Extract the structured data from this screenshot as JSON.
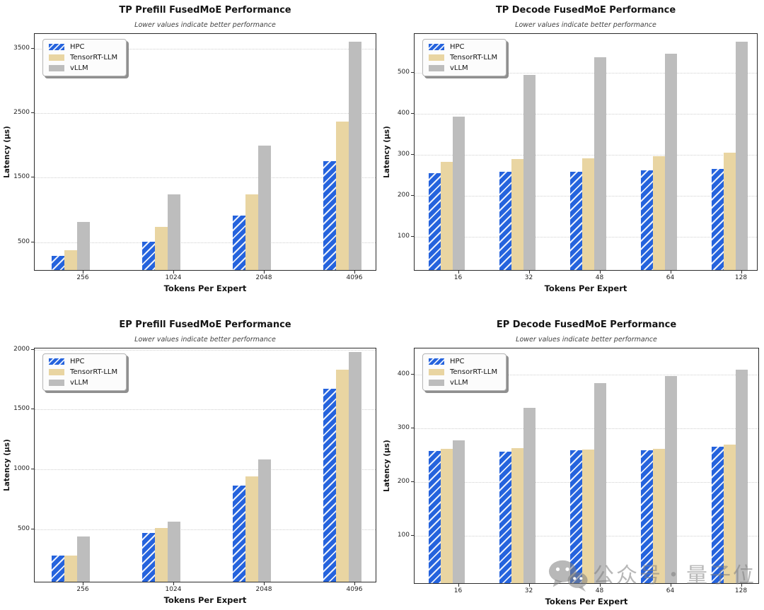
{
  "figure": {
    "background": "#ffffff",
    "series_colors": {
      "HPC": "#2563dd",
      "TensorRT-LLM": "#e9d5a2",
      "vLLM": "#bdbdbd"
    },
    "hatch_series": "HPC",
    "legend_labels": [
      "HPC",
      "TensorRT-LLM",
      "vLLM"
    ]
  },
  "watermark": {
    "icon": "wechat-logo",
    "text": "公众号・量子位"
  },
  "chart_data": [
    {
      "type": "bar",
      "title": "TP Prefill FusedMoE Performance",
      "subtitle": "Lower values indicate better performance",
      "xlabel": "Tokens Per Expert",
      "ylabel": "Latency (µs)",
      "categories": [
        "256",
        "1024",
        "2048",
        "4096"
      ],
      "yticks": [
        500,
        1500,
        2500,
        3500
      ],
      "ylim": [
        45,
        3730
      ],
      "grid": true,
      "legend_position": "upper left",
      "series": [
        {
          "name": "HPC",
          "values": [
            280,
            495,
            905,
            1750
          ]
        },
        {
          "name": "TensorRT-LLM",
          "values": [
            365,
            723,
            1235,
            2360
          ]
        },
        {
          "name": "vLLM",
          "values": [
            805,
            1225,
            1990,
            3600
          ]
        }
      ]
    },
    {
      "type": "bar",
      "title": "TP Decode FusedMoE Performance",
      "subtitle": "Lower values indicate better performance",
      "xlabel": "Tokens Per Expert",
      "ylabel": "Latency (µs)",
      "categories": [
        "16",
        "32",
        "48",
        "64",
        "128"
      ],
      "yticks": [
        100,
        200,
        300,
        400,
        500
      ],
      "ylim": [
        15,
        595
      ],
      "grid": true,
      "legend_position": "upper left",
      "series": [
        {
          "name": "HPC",
          "values": [
            253,
            256,
            257,
            260,
            264
          ]
        },
        {
          "name": "TensorRT-LLM",
          "values": [
            280,
            287,
            290,
            294,
            304
          ]
        },
        {
          "name": "vLLM",
          "values": [
            392,
            494,
            537,
            545,
            575
          ]
        }
      ]
    },
    {
      "type": "bar",
      "title": "EP Prefill FusedMoE Performance",
      "subtitle": "Lower values indicate better performance",
      "xlabel": "Tokens Per Expert",
      "ylabel": "Latency (µs)",
      "categories": [
        "256",
        "1024",
        "2048",
        "4096"
      ],
      "yticks": [
        500,
        1000,
        1500,
        2000
      ],
      "ylim": [
        50,
        2010
      ],
      "grid": true,
      "legend_position": "upper left",
      "series": [
        {
          "name": "HPC",
          "values": [
            272,
            462,
            860,
            1668
          ]
        },
        {
          "name": "TensorRT-LLM",
          "values": [
            275,
            505,
            938,
            1830
          ]
        },
        {
          "name": "vLLM",
          "values": [
            432,
            560,
            1078,
            1972
          ]
        }
      ]
    },
    {
      "type": "bar",
      "title": "EP Decode FusedMoE Performance",
      "subtitle": "Lower values indicate better performance",
      "xlabel": "Tokens Per Expert",
      "ylabel": "Latency (µs)",
      "categories": [
        "16",
        "32",
        "48",
        "64",
        "128"
      ],
      "yticks": [
        100,
        200,
        300,
        400
      ],
      "ylim": [
        10,
        448
      ],
      "grid": true,
      "legend_position": "upper left",
      "series": [
        {
          "name": "HPC",
          "values": [
            257,
            255,
            258,
            258,
            265
          ]
        },
        {
          "name": "TensorRT-LLM",
          "values": [
            260,
            262,
            259,
            260,
            269
          ]
        },
        {
          "name": "vLLM",
          "values": [
            276,
            336,
            383,
            396,
            408
          ]
        }
      ]
    }
  ]
}
